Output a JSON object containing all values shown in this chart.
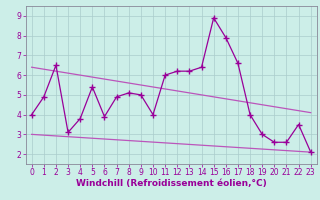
{
  "xlabel": "Windchill (Refroidissement éolien,°C)",
  "background_color": "#cceee8",
  "grid_color": "#aacccc",
  "line_color": "#990099",
  "trend_color": "#bb55bb",
  "xlim": [
    -0.5,
    23.5
  ],
  "ylim": [
    1.5,
    9.5
  ],
  "yticks": [
    2,
    3,
    4,
    5,
    6,
    7,
    8,
    9
  ],
  "xticks": [
    0,
    1,
    2,
    3,
    4,
    5,
    6,
    7,
    8,
    9,
    10,
    11,
    12,
    13,
    14,
    15,
    16,
    17,
    18,
    19,
    20,
    21,
    22,
    23
  ],
  "main_x": [
    0,
    1,
    2,
    3,
    4,
    5,
    6,
    7,
    8,
    9,
    10,
    11,
    12,
    13,
    14,
    15,
    16,
    17,
    18,
    19,
    20,
    21,
    22,
    23
  ],
  "main_y": [
    4.0,
    4.9,
    6.5,
    3.1,
    3.8,
    5.4,
    3.9,
    4.9,
    5.1,
    5.0,
    4.0,
    6.0,
    6.2,
    6.2,
    6.4,
    8.9,
    7.9,
    6.6,
    4.0,
    3.0,
    2.6,
    2.6,
    3.5,
    2.1
  ],
  "trend1_x": [
    0,
    23
  ],
  "trend1_y": [
    6.4,
    4.1
  ],
  "trend2_x": [
    0,
    23
  ],
  "trend2_y": [
    3.0,
    2.1
  ],
  "tick_fontsize": 5.5,
  "xlabel_fontsize": 6.5,
  "xlabel_color": "#990099",
  "xlabel_fontweight": "bold"
}
